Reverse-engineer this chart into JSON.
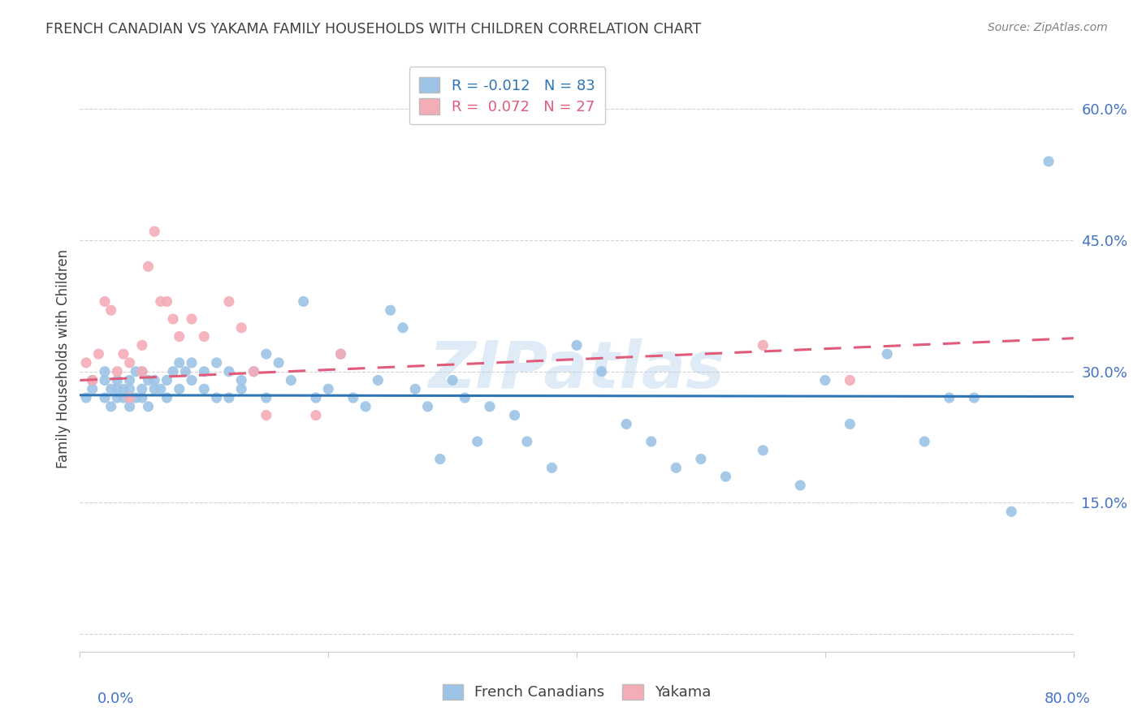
{
  "title": "FRENCH CANADIAN VS YAKAMA FAMILY HOUSEHOLDS WITH CHILDREN CORRELATION CHART",
  "source": "Source: ZipAtlas.com",
  "ylabel": "Family Households with Children",
  "watermark": "ZIPatlas",
  "french_R": -0.012,
  "french_N": 83,
  "yakama_R": 0.072,
  "yakama_N": 27,
  "french_color": "#9dc3e6",
  "yakama_color": "#f4acb7",
  "french_line_color": "#2e75b6",
  "yakama_line_color": "#e05c7a",
  "yticks": [
    0.0,
    0.15,
    0.3,
    0.45,
    0.6
  ],
  "ytick_labels": [
    "",
    "15.0%",
    "30.0%",
    "45.0%",
    "60.0%"
  ],
  "xlim": [
    0.0,
    0.8
  ],
  "ylim": [
    -0.02,
    0.65
  ],
  "french_x": [
    0.005,
    0.01,
    0.01,
    0.02,
    0.02,
    0.02,
    0.025,
    0.025,
    0.03,
    0.03,
    0.03,
    0.035,
    0.035,
    0.04,
    0.04,
    0.04,
    0.045,
    0.045,
    0.05,
    0.05,
    0.05,
    0.055,
    0.055,
    0.06,
    0.06,
    0.065,
    0.07,
    0.07,
    0.075,
    0.08,
    0.08,
    0.085,
    0.09,
    0.09,
    0.1,
    0.1,
    0.11,
    0.11,
    0.12,
    0.12,
    0.13,
    0.13,
    0.14,
    0.15,
    0.15,
    0.16,
    0.17,
    0.18,
    0.19,
    0.2,
    0.21,
    0.22,
    0.23,
    0.24,
    0.25,
    0.26,
    0.27,
    0.28,
    0.29,
    0.3,
    0.31,
    0.32,
    0.33,
    0.35,
    0.36,
    0.38,
    0.4,
    0.42,
    0.44,
    0.46,
    0.48,
    0.5,
    0.52,
    0.55,
    0.58,
    0.6,
    0.62,
    0.65,
    0.68,
    0.7,
    0.72,
    0.75,
    0.78
  ],
  "french_y": [
    0.27,
    0.28,
    0.29,
    0.27,
    0.29,
    0.3,
    0.26,
    0.28,
    0.27,
    0.28,
    0.29,
    0.27,
    0.28,
    0.26,
    0.28,
    0.29,
    0.27,
    0.3,
    0.27,
    0.28,
    0.3,
    0.26,
    0.29,
    0.28,
    0.29,
    0.28,
    0.27,
    0.29,
    0.3,
    0.28,
    0.31,
    0.3,
    0.29,
    0.31,
    0.3,
    0.28,
    0.31,
    0.27,
    0.3,
    0.27,
    0.29,
    0.28,
    0.3,
    0.27,
    0.32,
    0.31,
    0.29,
    0.38,
    0.27,
    0.28,
    0.32,
    0.27,
    0.26,
    0.29,
    0.37,
    0.35,
    0.28,
    0.26,
    0.2,
    0.29,
    0.27,
    0.22,
    0.26,
    0.25,
    0.22,
    0.19,
    0.33,
    0.3,
    0.24,
    0.22,
    0.19,
    0.2,
    0.18,
    0.21,
    0.17,
    0.29,
    0.24,
    0.32,
    0.22,
    0.27,
    0.27,
    0.14,
    0.54
  ],
  "yakama_x": [
    0.005,
    0.01,
    0.015,
    0.02,
    0.025,
    0.03,
    0.035,
    0.04,
    0.04,
    0.05,
    0.05,
    0.055,
    0.06,
    0.065,
    0.07,
    0.075,
    0.08,
    0.09,
    0.1,
    0.12,
    0.13,
    0.14,
    0.15,
    0.19,
    0.21,
    0.55,
    0.62
  ],
  "yakama_y": [
    0.31,
    0.29,
    0.32,
    0.38,
    0.37,
    0.3,
    0.32,
    0.31,
    0.27,
    0.33,
    0.3,
    0.42,
    0.46,
    0.38,
    0.38,
    0.36,
    0.34,
    0.36,
    0.34,
    0.38,
    0.35,
    0.3,
    0.25,
    0.25,
    0.32,
    0.33,
    0.29
  ],
  "bg_color": "#ffffff",
  "grid_color": "#d3d3d3",
  "title_color": "#404040",
  "source_color": "#808080",
  "tick_label_color": "#4472c4"
}
